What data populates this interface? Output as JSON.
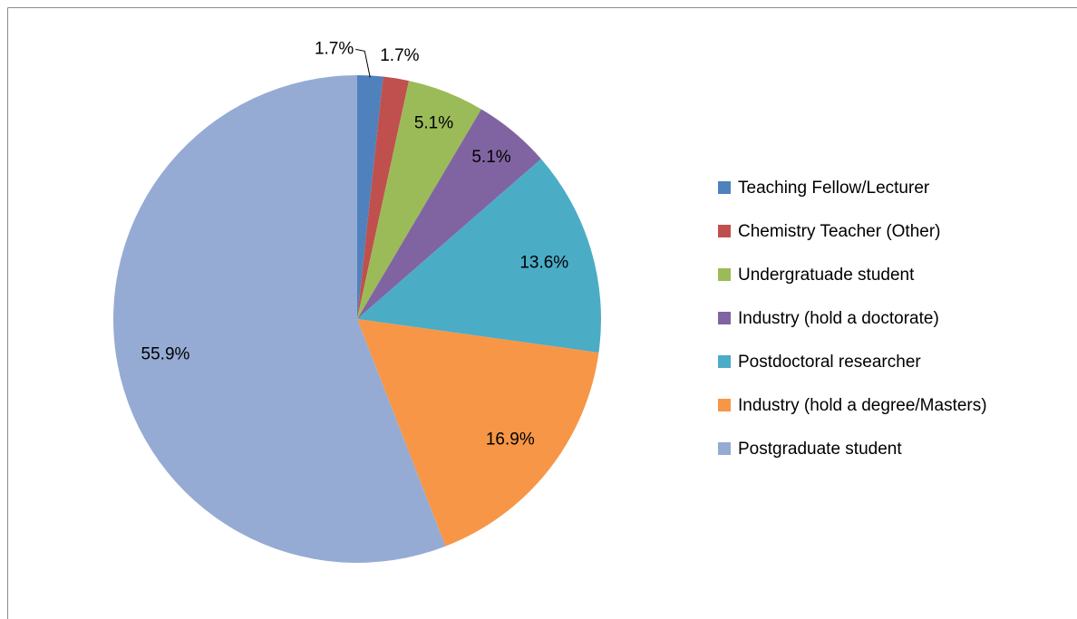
{
  "chart_data": {
    "type": "pie",
    "categories": [
      "Teaching Fellow/Lecturer",
      "Chemistry Teacher (Other)",
      "Undergratuade student",
      "Industry (hold a doctorate)",
      "Postdoctoral researcher",
      "Industry (hold a degree/Masters)",
      "Postgraduate student"
    ],
    "values": [
      1.7,
      1.7,
      5.1,
      5.1,
      13.6,
      16.9,
      55.9
    ],
    "value_labels": [
      "1.7%",
      "1.7%",
      "5.1%",
      "5.1%",
      "13.6%",
      "16.9%",
      "55.9%"
    ],
    "colors": [
      "#4f81bd",
      "#c0504d",
      "#9bbb59",
      "#8064a2",
      "#4bacc6",
      "#f79646",
      "#95abd4"
    ],
    "legend": "right"
  }
}
